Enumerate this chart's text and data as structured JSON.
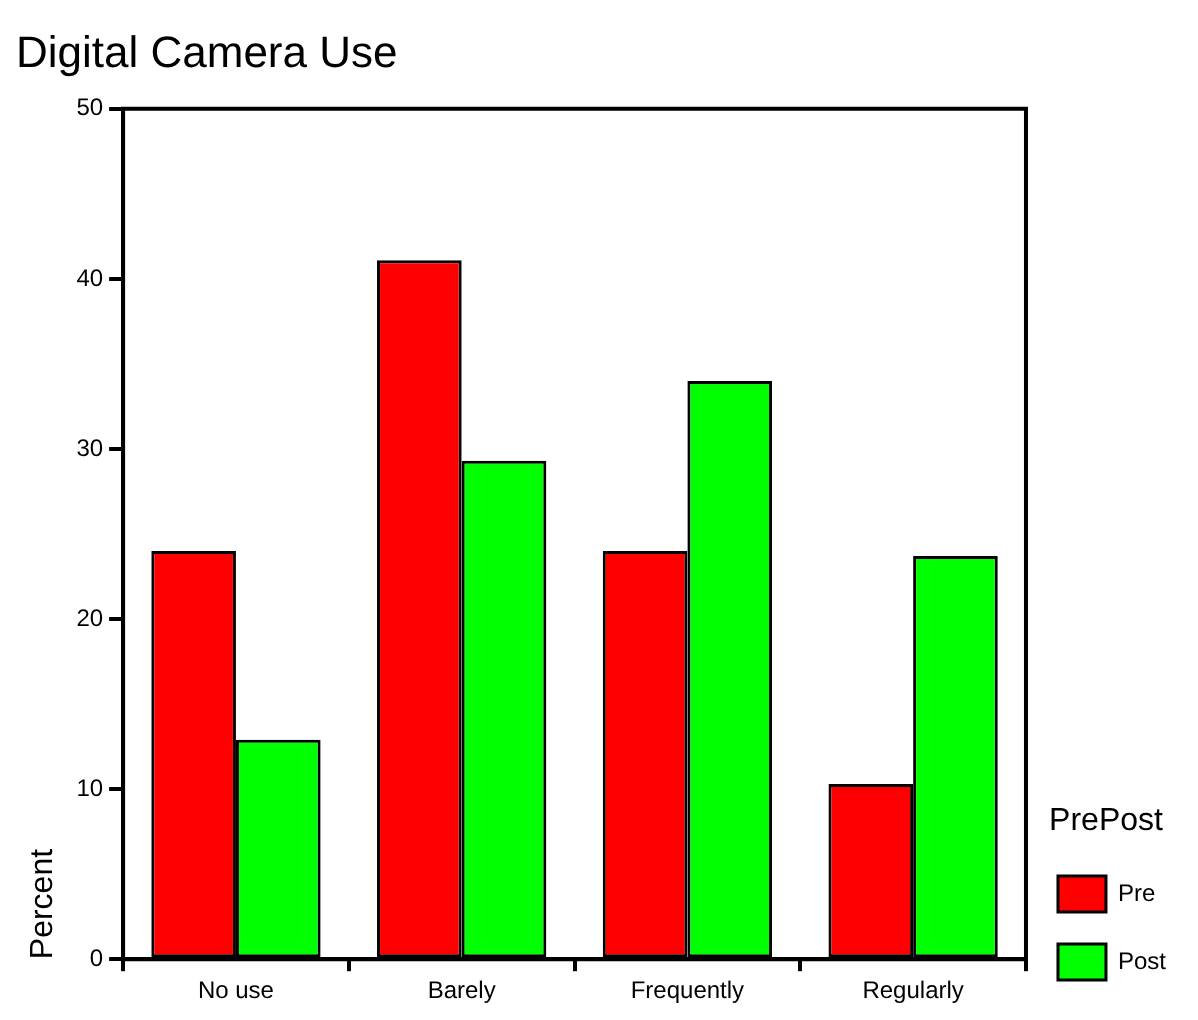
{
  "chart_data": {
    "type": "bar",
    "title": "Digital Camera Use",
    "ylabel": "Percent",
    "legend_title": "PrePost",
    "categories": [
      "No use",
      "Barely",
      "Frequently",
      "Regularly"
    ],
    "series": [
      {
        "name": "Pre",
        "color": "#ff0000",
        "values": [
          24.0,
          41.1,
          24.0,
          10.3
        ]
      },
      {
        "name": "Post",
        "color": "#00ff00",
        "values": [
          12.9,
          29.3,
          34.0,
          23.7
        ]
      }
    ],
    "ylim": [
      0,
      50
    ],
    "yticks": [
      0,
      10,
      20,
      30,
      40,
      50
    ],
    "grid": false,
    "legend": "bottom right"
  }
}
